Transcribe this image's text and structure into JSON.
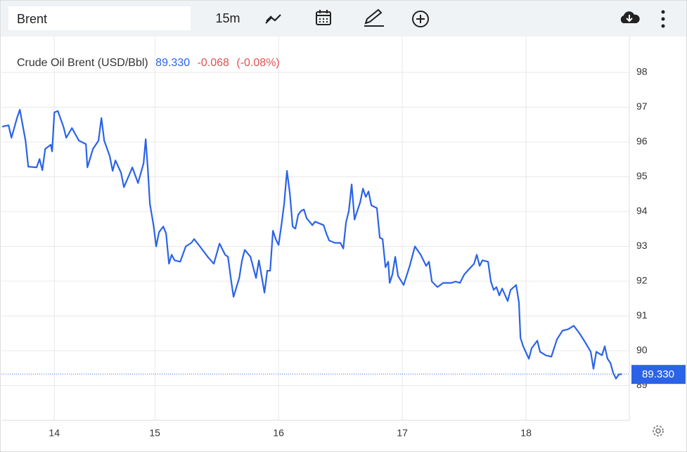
{
  "toolbar": {
    "symbol": "Brent",
    "interval": "15m"
  },
  "chart_data": {
    "type": "line",
    "legend": {
      "last": {
        "value": 89.33,
        "label": "89.330"
      },
      "change": -0.068,
      "change_pct": {
        "value": -0.08,
        "label": "(-0.08%)"
      }
    },
    "last_price": {
      "value": 89.33,
      "label": "89.330"
    },
    "xlim": [
      13.76,
      18.835
    ],
    "ylim": [
      88,
      99.03
    ],
    "xticks": [
      {
        "value": 14.1875,
        "label": "14"
      },
      15,
      16,
      17,
      18
    ],
    "yticks": [
      89,
      90,
      91,
      92,
      93,
      94,
      95,
      96,
      97,
      98
    ],
    "grid": true,
    "x": [
      13.767,
      13.818,
      13.841,
      13.886,
      13.909,
      13.955,
      13.977,
      14.045,
      14.068,
      14.091,
      14.114,
      14.159,
      14.17,
      14.188,
      14.216,
      14.261,
      14.284,
      14.33,
      14.386,
      14.443,
      14.455,
      14.5,
      14.545,
      14.568,
      14.591,
      14.636,
      14.659,
      14.682,
      14.727,
      14.75,
      14.795,
      14.818,
      14.864,
      14.909,
      14.926,
      14.943,
      14.96,
      14.989,
      15.011,
      15.034,
      15.068,
      15.091,
      15.114,
      15.136,
      15.159,
      15.205,
      15.25,
      15.295,
      15.318,
      15.364,
      15.432,
      15.477,
      15.523,
      15.568,
      15.591,
      15.614,
      15.636,
      15.682,
      15.705,
      15.727,
      15.773,
      15.818,
      15.841,
      15.886,
      15.909,
      15.932,
      15.955,
      15.977,
      16.0,
      16.023,
      16.045,
      16.068,
      16.091,
      16.114,
      16.136,
      16.159,
      16.182,
      16.205,
      16.227,
      16.273,
      16.295,
      16.364,
      16.386,
      16.409,
      16.455,
      16.5,
      16.523,
      16.545,
      16.568,
      16.591,
      16.614,
      16.636,
      16.659,
      16.682,
      16.705,
      16.727,
      16.75,
      16.795,
      16.818,
      16.841,
      16.864,
      16.886,
      16.898,
      16.92,
      16.943,
      16.966,
      17.011,
      17.057,
      17.102,
      17.148,
      17.193,
      17.216,
      17.239,
      17.284,
      17.33,
      17.398,
      17.432,
      17.466,
      17.5,
      17.523,
      17.58,
      17.602,
      17.625,
      17.648,
      17.693,
      17.716,
      17.739,
      17.761,
      17.784,
      17.807,
      17.852,
      17.875,
      17.92,
      17.943,
      17.955,
      17.977,
      18.023,
      18.045,
      18.091,
      18.114,
      18.159,
      18.205,
      18.25,
      18.295,
      18.341,
      18.386,
      18.432,
      18.477,
      18.523,
      18.545,
      18.568,
      18.614,
      18.636,
      18.659,
      18.682,
      18.705,
      18.727,
      18.75,
      18.773
    ],
    "series": [
      {
        "name": "Crude Oil Brent (USD/Bbl)",
        "color": "#2b63e8",
        "values": [
          96.44,
          96.48,
          96.12,
          96.69,
          96.93,
          96.04,
          95.29,
          95.27,
          95.51,
          95.19,
          95.8,
          95.92,
          95.73,
          96.85,
          96.89,
          96.44,
          96.12,
          96.4,
          96.04,
          95.94,
          95.27,
          95.8,
          96.04,
          96.69,
          96.04,
          95.59,
          95.17,
          95.47,
          95.11,
          94.7,
          95.07,
          95.27,
          94.82,
          95.39,
          96.08,
          95.23,
          94.22,
          93.61,
          93.0,
          93.41,
          93.57,
          93.37,
          92.5,
          92.76,
          92.6,
          92.56,
          93.0,
          93.1,
          93.21,
          93.0,
          92.68,
          92.5,
          93.08,
          92.76,
          92.7,
          92.09,
          91.55,
          92.09,
          92.6,
          92.9,
          92.7,
          92.09,
          92.6,
          91.67,
          92.3,
          92.3,
          93.45,
          93.21,
          93.04,
          93.61,
          94.22,
          95.17,
          94.52,
          93.57,
          93.51,
          93.91,
          94.02,
          94.06,
          93.81,
          93.61,
          93.71,
          93.61,
          93.37,
          93.17,
          93.1,
          93.1,
          92.94,
          93.69,
          94.02,
          94.78,
          93.77,
          94.02,
          94.26,
          94.66,
          94.42,
          94.58,
          94.18,
          94.1,
          93.25,
          93.21,
          92.4,
          92.56,
          91.95,
          92.19,
          92.7,
          92.15,
          91.89,
          92.4,
          93.0,
          92.76,
          92.44,
          92.56,
          91.99,
          91.83,
          91.95,
          91.95,
          91.99,
          91.95,
          92.19,
          92.28,
          92.5,
          92.76,
          92.44,
          92.6,
          92.56,
          91.99,
          91.75,
          91.83,
          91.59,
          91.79,
          91.43,
          91.75,
          91.89,
          91.39,
          90.37,
          90.13,
          89.77,
          90.07,
          90.29,
          89.97,
          89.87,
          89.83,
          90.33,
          90.58,
          90.62,
          90.72,
          90.5,
          90.25,
          89.97,
          89.48,
          89.97,
          89.87,
          90.13,
          89.77,
          89.65,
          89.36,
          89.2,
          89.32,
          89.33
        ]
      }
    ]
  }
}
